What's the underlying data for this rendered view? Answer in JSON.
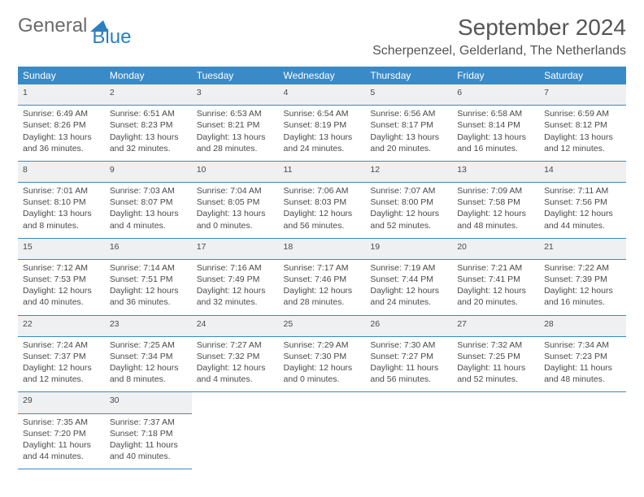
{
  "logo": {
    "partA": "General",
    "partB": "Blue"
  },
  "title": "September 2024",
  "location": "Scherpenzeel, Gelderland, The Netherlands",
  "colors": {
    "headerBlue": "#3a8ac7",
    "dayRowGray": "#eef0f1",
    "textGray": "#555555",
    "logoBlue": "#2a7fc0"
  },
  "weekdays": [
    "Sunday",
    "Monday",
    "Tuesday",
    "Wednesday",
    "Thursday",
    "Friday",
    "Saturday"
  ],
  "weeks": [
    [
      {
        "n": "1",
        "sunrise": "Sunrise: 6:49 AM",
        "sunset": "Sunset: 8:26 PM",
        "day1": "Daylight: 13 hours",
        "day2": "and 36 minutes."
      },
      {
        "n": "2",
        "sunrise": "Sunrise: 6:51 AM",
        "sunset": "Sunset: 8:23 PM",
        "day1": "Daylight: 13 hours",
        "day2": "and 32 minutes."
      },
      {
        "n": "3",
        "sunrise": "Sunrise: 6:53 AM",
        "sunset": "Sunset: 8:21 PM",
        "day1": "Daylight: 13 hours",
        "day2": "and 28 minutes."
      },
      {
        "n": "4",
        "sunrise": "Sunrise: 6:54 AM",
        "sunset": "Sunset: 8:19 PM",
        "day1": "Daylight: 13 hours",
        "day2": "and 24 minutes."
      },
      {
        "n": "5",
        "sunrise": "Sunrise: 6:56 AM",
        "sunset": "Sunset: 8:17 PM",
        "day1": "Daylight: 13 hours",
        "day2": "and 20 minutes."
      },
      {
        "n": "6",
        "sunrise": "Sunrise: 6:58 AM",
        "sunset": "Sunset: 8:14 PM",
        "day1": "Daylight: 13 hours",
        "day2": "and 16 minutes."
      },
      {
        "n": "7",
        "sunrise": "Sunrise: 6:59 AM",
        "sunset": "Sunset: 8:12 PM",
        "day1": "Daylight: 13 hours",
        "day2": "and 12 minutes."
      }
    ],
    [
      {
        "n": "8",
        "sunrise": "Sunrise: 7:01 AM",
        "sunset": "Sunset: 8:10 PM",
        "day1": "Daylight: 13 hours",
        "day2": "and 8 minutes."
      },
      {
        "n": "9",
        "sunrise": "Sunrise: 7:03 AM",
        "sunset": "Sunset: 8:07 PM",
        "day1": "Daylight: 13 hours",
        "day2": "and 4 minutes."
      },
      {
        "n": "10",
        "sunrise": "Sunrise: 7:04 AM",
        "sunset": "Sunset: 8:05 PM",
        "day1": "Daylight: 13 hours",
        "day2": "and 0 minutes."
      },
      {
        "n": "11",
        "sunrise": "Sunrise: 7:06 AM",
        "sunset": "Sunset: 8:03 PM",
        "day1": "Daylight: 12 hours",
        "day2": "and 56 minutes."
      },
      {
        "n": "12",
        "sunrise": "Sunrise: 7:07 AM",
        "sunset": "Sunset: 8:00 PM",
        "day1": "Daylight: 12 hours",
        "day2": "and 52 minutes."
      },
      {
        "n": "13",
        "sunrise": "Sunrise: 7:09 AM",
        "sunset": "Sunset: 7:58 PM",
        "day1": "Daylight: 12 hours",
        "day2": "and 48 minutes."
      },
      {
        "n": "14",
        "sunrise": "Sunrise: 7:11 AM",
        "sunset": "Sunset: 7:56 PM",
        "day1": "Daylight: 12 hours",
        "day2": "and 44 minutes."
      }
    ],
    [
      {
        "n": "15",
        "sunrise": "Sunrise: 7:12 AM",
        "sunset": "Sunset: 7:53 PM",
        "day1": "Daylight: 12 hours",
        "day2": "and 40 minutes."
      },
      {
        "n": "16",
        "sunrise": "Sunrise: 7:14 AM",
        "sunset": "Sunset: 7:51 PM",
        "day1": "Daylight: 12 hours",
        "day2": "and 36 minutes."
      },
      {
        "n": "17",
        "sunrise": "Sunrise: 7:16 AM",
        "sunset": "Sunset: 7:49 PM",
        "day1": "Daylight: 12 hours",
        "day2": "and 32 minutes."
      },
      {
        "n": "18",
        "sunrise": "Sunrise: 7:17 AM",
        "sunset": "Sunset: 7:46 PM",
        "day1": "Daylight: 12 hours",
        "day2": "and 28 minutes."
      },
      {
        "n": "19",
        "sunrise": "Sunrise: 7:19 AM",
        "sunset": "Sunset: 7:44 PM",
        "day1": "Daylight: 12 hours",
        "day2": "and 24 minutes."
      },
      {
        "n": "20",
        "sunrise": "Sunrise: 7:21 AM",
        "sunset": "Sunset: 7:41 PM",
        "day1": "Daylight: 12 hours",
        "day2": "and 20 minutes."
      },
      {
        "n": "21",
        "sunrise": "Sunrise: 7:22 AM",
        "sunset": "Sunset: 7:39 PM",
        "day1": "Daylight: 12 hours",
        "day2": "and 16 minutes."
      }
    ],
    [
      {
        "n": "22",
        "sunrise": "Sunrise: 7:24 AM",
        "sunset": "Sunset: 7:37 PM",
        "day1": "Daylight: 12 hours",
        "day2": "and 12 minutes."
      },
      {
        "n": "23",
        "sunrise": "Sunrise: 7:25 AM",
        "sunset": "Sunset: 7:34 PM",
        "day1": "Daylight: 12 hours",
        "day2": "and 8 minutes."
      },
      {
        "n": "24",
        "sunrise": "Sunrise: 7:27 AM",
        "sunset": "Sunset: 7:32 PM",
        "day1": "Daylight: 12 hours",
        "day2": "and 4 minutes."
      },
      {
        "n": "25",
        "sunrise": "Sunrise: 7:29 AM",
        "sunset": "Sunset: 7:30 PM",
        "day1": "Daylight: 12 hours",
        "day2": "and 0 minutes."
      },
      {
        "n": "26",
        "sunrise": "Sunrise: 7:30 AM",
        "sunset": "Sunset: 7:27 PM",
        "day1": "Daylight: 11 hours",
        "day2": "and 56 minutes."
      },
      {
        "n": "27",
        "sunrise": "Sunrise: 7:32 AM",
        "sunset": "Sunset: 7:25 PM",
        "day1": "Daylight: 11 hours",
        "day2": "and 52 minutes."
      },
      {
        "n": "28",
        "sunrise": "Sunrise: 7:34 AM",
        "sunset": "Sunset: 7:23 PM",
        "day1": "Daylight: 11 hours",
        "day2": "and 48 minutes."
      }
    ],
    [
      {
        "n": "29",
        "sunrise": "Sunrise: 7:35 AM",
        "sunset": "Sunset: 7:20 PM",
        "day1": "Daylight: 11 hours",
        "day2": "and 44 minutes."
      },
      {
        "n": "30",
        "sunrise": "Sunrise: 7:37 AM",
        "sunset": "Sunset: 7:18 PM",
        "day1": "Daylight: 11 hours",
        "day2": "and 40 minutes."
      },
      null,
      null,
      null,
      null,
      null
    ]
  ]
}
